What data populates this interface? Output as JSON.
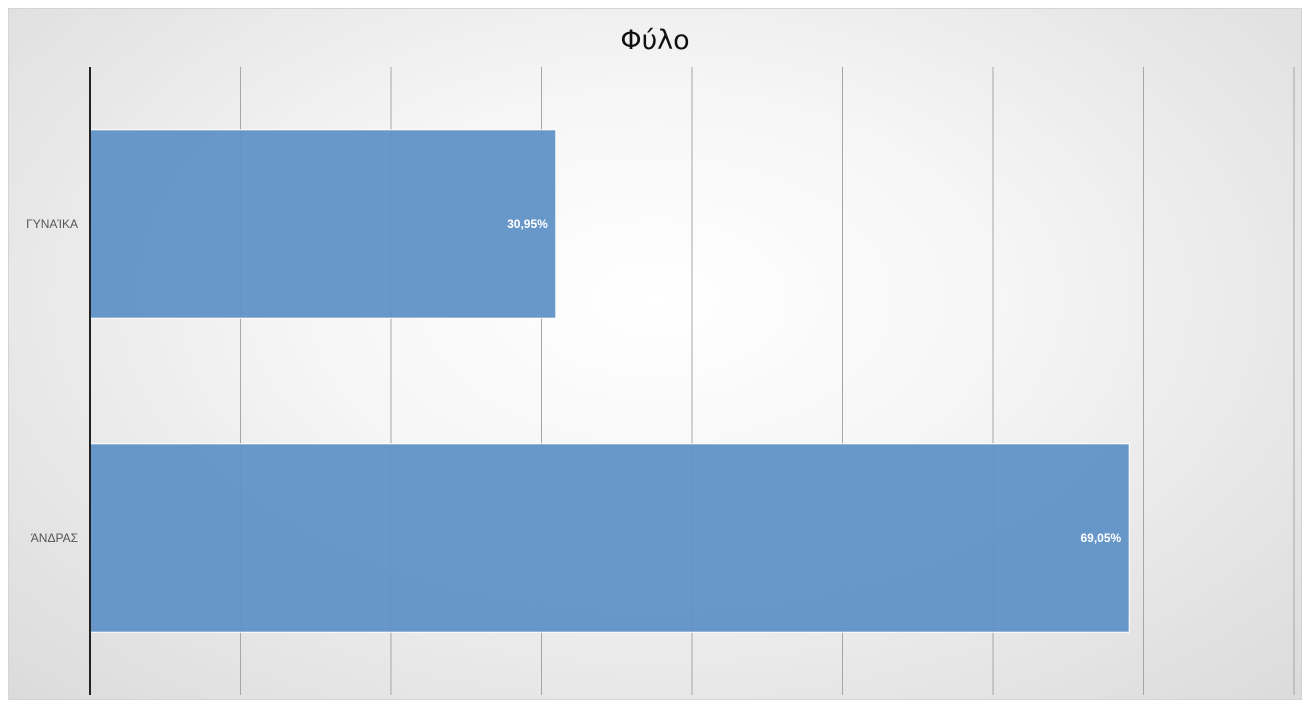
{
  "chart_data": {
    "type": "bar",
    "orientation": "horizontal",
    "title": "Φύλο",
    "categories": [
      "ΓΥΝΑΊΚΑ",
      "ΆΝΔΡΑΣ"
    ],
    "values": [
      30.95,
      69.05
    ],
    "data_labels": [
      "30,95%",
      "69,05%"
    ],
    "unit": "%",
    "xlim": [
      0,
      80
    ],
    "x_gridlines": [
      0,
      10,
      20,
      30,
      40,
      50,
      60,
      70,
      80
    ],
    "x_tick_labels_visible": false,
    "grid": true,
    "legend": "none",
    "bar_color": "#6091c6"
  }
}
